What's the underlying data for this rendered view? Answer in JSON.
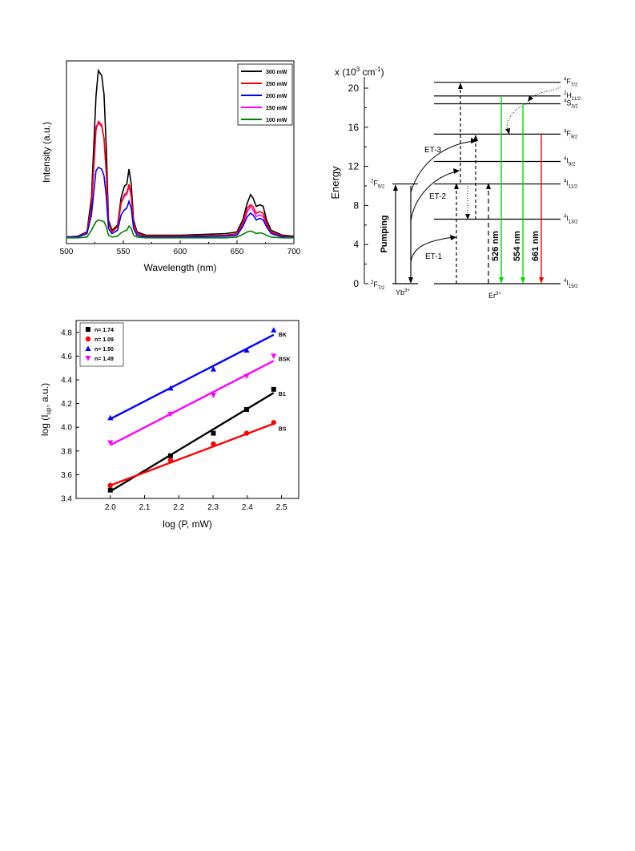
{
  "spectrum": {
    "chart_data": {
      "type": "line",
      "xlabel": "Wavelength (nm)",
      "ylabel": "Intensity (a.u.)",
      "xlim": [
        500,
        700
      ],
      "x_ticks": [
        "500",
        "550",
        "600",
        "650",
        "700"
      ],
      "legend_position": "top-right",
      "series": [
        {
          "name": "300 mW",
          "color": "#000000",
          "points": [
            [
              500,
              0.02
            ],
            [
              510,
              0.025
            ],
            [
              518,
              0.05
            ],
            [
              522,
              0.25
            ],
            [
              526,
              0.85
            ],
            [
              528,
              1.0
            ],
            [
              531,
              0.97
            ],
            [
              533,
              0.86
            ],
            [
              535,
              0.55
            ],
            [
              537,
              0.12
            ],
            [
              540,
              0.06
            ],
            [
              545,
              0.09
            ],
            [
              548,
              0.25
            ],
            [
              551,
              0.32
            ],
            [
              553,
              0.33
            ],
            [
              555,
              0.42
            ],
            [
              557,
              0.33
            ],
            [
              559,
              0.12
            ],
            [
              562,
              0.05
            ],
            [
              570,
              0.03
            ],
            [
              600,
              0.03
            ],
            [
              640,
              0.04
            ],
            [
              650,
              0.05
            ],
            [
              655,
              0.12
            ],
            [
              659,
              0.22
            ],
            [
              662,
              0.27
            ],
            [
              664,
              0.25
            ],
            [
              667,
              0.2
            ],
            [
              670,
              0.21
            ],
            [
              673,
              0.2
            ],
            [
              676,
              0.12
            ],
            [
              680,
              0.06
            ],
            [
              690,
              0.03
            ],
            [
              700,
              0.025
            ]
          ]
        },
        {
          "name": "250 mW",
          "color": "#ff0000",
          "points": [
            [
              500,
              0.02
            ],
            [
              510,
              0.022
            ],
            [
              518,
              0.045
            ],
            [
              522,
              0.2
            ],
            [
              526,
              0.65
            ],
            [
              528,
              0.7
            ],
            [
              531,
              0.68
            ],
            [
              533,
              0.6
            ],
            [
              535,
              0.4
            ],
            [
              537,
              0.1
            ],
            [
              540,
              0.05
            ],
            [
              545,
              0.08
            ],
            [
              548,
              0.22
            ],
            [
              551,
              0.27
            ],
            [
              553,
              0.28
            ],
            [
              555,
              0.33
            ],
            [
              557,
              0.27
            ],
            [
              559,
              0.1
            ],
            [
              562,
              0.04
            ],
            [
              570,
              0.025
            ],
            [
              600,
              0.025
            ],
            [
              640,
              0.03
            ],
            [
              650,
              0.04
            ],
            [
              655,
              0.1
            ],
            [
              659,
              0.19
            ],
            [
              662,
              0.21
            ],
            [
              664,
              0.2
            ],
            [
              667,
              0.16
            ],
            [
              670,
              0.17
            ],
            [
              673,
              0.16
            ],
            [
              676,
              0.1
            ],
            [
              680,
              0.05
            ],
            [
              690,
              0.025
            ],
            [
              700,
              0.022
            ]
          ]
        },
        {
          "name": "200 mW",
          "color": "#0000ff",
          "points": [
            [
              500,
              0.02
            ],
            [
              510,
              0.02
            ],
            [
              518,
              0.04
            ],
            [
              522,
              0.15
            ],
            [
              526,
              0.41
            ],
            [
              528,
              0.43
            ],
            [
              531,
              0.42
            ],
            [
              533,
              0.38
            ],
            [
              535,
              0.26
            ],
            [
              537,
              0.07
            ],
            [
              540,
              0.04
            ],
            [
              545,
              0.06
            ],
            [
              548,
              0.15
            ],
            [
              551,
              0.18
            ],
            [
              553,
              0.19
            ],
            [
              555,
              0.23
            ],
            [
              557,
              0.19
            ],
            [
              559,
              0.07
            ],
            [
              562,
              0.03
            ],
            [
              570,
              0.02
            ],
            [
              600,
              0.02
            ],
            [
              640,
              0.025
            ],
            [
              650,
              0.03
            ],
            [
              655,
              0.08
            ],
            [
              659,
              0.14
            ],
            [
              662,
              0.16
            ],
            [
              664,
              0.15
            ],
            [
              667,
              0.12
            ],
            [
              670,
              0.13
            ],
            [
              673,
              0.12
            ],
            [
              676,
              0.08
            ],
            [
              680,
              0.04
            ],
            [
              690,
              0.02
            ],
            [
              700,
              0.02
            ]
          ]
        },
        {
          "name": "150 mW",
          "color": "#ff00ff",
          "points": [
            [
              500,
              0.02
            ],
            [
              510,
              0.022
            ],
            [
              518,
              0.045
            ],
            [
              522,
              0.2
            ],
            [
              526,
              0.67
            ],
            [
              528,
              0.69
            ],
            [
              531,
              0.67
            ],
            [
              533,
              0.6
            ],
            [
              535,
              0.4
            ],
            [
              537,
              0.1
            ],
            [
              540,
              0.05
            ],
            [
              545,
              0.08
            ],
            [
              548,
              0.22
            ],
            [
              551,
              0.26
            ],
            [
              553,
              0.27
            ],
            [
              555,
              0.32
            ],
            [
              557,
              0.26
            ],
            [
              559,
              0.1
            ],
            [
              562,
              0.04
            ],
            [
              570,
              0.025
            ],
            [
              600,
              0.025
            ],
            [
              640,
              0.03
            ],
            [
              650,
              0.04
            ],
            [
              655,
              0.09
            ],
            [
              659,
              0.17
            ],
            [
              662,
              0.2
            ],
            [
              664,
              0.18
            ],
            [
              667,
              0.14
            ],
            [
              670,
              0.15
            ],
            [
              673,
              0.14
            ],
            [
              676,
              0.09
            ],
            [
              680,
              0.045
            ],
            [
              690,
              0.025
            ],
            [
              700,
              0.022
            ]
          ]
        },
        {
          "name": "100 mW",
          "color": "#008000",
          "points": [
            [
              500,
              0.015
            ],
            [
              510,
              0.015
            ],
            [
              518,
              0.02
            ],
            [
              522,
              0.06
            ],
            [
              526,
              0.11
            ],
            [
              528,
              0.12
            ],
            [
              531,
              0.115
            ],
            [
              533,
              0.11
            ],
            [
              535,
              0.08
            ],
            [
              537,
              0.03
            ],
            [
              540,
              0.02
            ],
            [
              545,
              0.025
            ],
            [
              548,
              0.045
            ],
            [
              551,
              0.055
            ],
            [
              553,
              0.06
            ],
            [
              555,
              0.085
            ],
            [
              557,
              0.07
            ],
            [
              559,
              0.03
            ],
            [
              562,
              0.02
            ],
            [
              570,
              0.015
            ],
            [
              600,
              0.015
            ],
            [
              640,
              0.015
            ],
            [
              650,
              0.02
            ],
            [
              655,
              0.035
            ],
            [
              659,
              0.05
            ],
            [
              662,
              0.055
            ],
            [
              664,
              0.05
            ],
            [
              667,
              0.04
            ],
            [
              670,
              0.045
            ],
            [
              673,
              0.04
            ],
            [
              676,
              0.03
            ],
            [
              680,
              0.02
            ],
            [
              690,
              0.015
            ],
            [
              700,
              0.015
            ]
          ]
        }
      ]
    }
  },
  "energy": {
    "ylabel": "Energy",
    "unit_label": {
      "a": "x (10",
      "b": "3",
      "c": " cm",
      "d": "-1",
      "e": ")"
    },
    "y_ticks": [
      "0",
      "4",
      "8",
      "12",
      "16",
      "20"
    ],
    "yb_levels": [
      {
        "energy": 0,
        "label": {
          "sup": "2",
          "main": "F",
          "sub": "7/2"
        }
      },
      {
        "energy": 10.2,
        "label": {
          "sup": "2",
          "main": "F",
          "sub": "5/2"
        }
      }
    ],
    "er_levels": [
      {
        "energy": 0,
        "label": {
          "sup": "4",
          "main": "I",
          "sub": "15/2"
        }
      },
      {
        "energy": 6.6,
        "label": {
          "sup": "4",
          "main": "I",
          "sub": "13/2"
        }
      },
      {
        "energy": 10.2,
        "label": {
          "sup": "4",
          "main": "I",
          "sub": "11/2"
        }
      },
      {
        "energy": 12.5,
        "label": {
          "sup": "4",
          "main": "I",
          "sub": "9/2"
        }
      },
      {
        "energy": 15.3,
        "label": {
          "sup": "4",
          "main": "F",
          "sub": "9/2"
        }
      },
      {
        "energy": 18.4,
        "label": {
          "sup": "4",
          "main": "S",
          "sub": "3/2"
        }
      },
      {
        "energy": 19.2,
        "label": {
          "sup": "2",
          "main": "H",
          "sub": "11/2"
        }
      },
      {
        "energy": 20.6,
        "label": {
          "sup": "4",
          "main": "F",
          "sub": "7/2"
        }
      }
    ],
    "ion_yb": {
      "main": "Yb",
      "sup": "3+"
    },
    "ion_er": {
      "main": "Er",
      "sup": "3+"
    },
    "pumping": "Pumping",
    "et_labels": [
      "ET-1",
      "ET-2",
      "ET-3"
    ],
    "emissions": [
      {
        "label": "526 nm",
        "from_energy": 19.2,
        "color": "#00dd00"
      },
      {
        "label": "554 nm",
        "from_energy": 18.4,
        "color": "#00dd00"
      },
      {
        "label": "661 nm",
        "from_energy": 15.3,
        "color": "#ff0000"
      }
    ]
  },
  "power": {
    "chart_data": {
      "type": "scatter",
      "xlabel": "log (P, mW)",
      "ylabel": {
        "a": "log (I",
        "sub": "up",
        "b": ", a.u.)"
      },
      "xlim": [
        1.9,
        2.55
      ],
      "ylim": [
        3.4,
        4.9
      ],
      "x_ticks": [
        "2.0",
        "2.1",
        "2.2",
        "2.3",
        "2.4",
        "2.5"
      ],
      "y_ticks": [
        "3.4",
        "3.6",
        "3.8",
        "4.0",
        "4.2",
        "4.4",
        "4.6",
        "4.8"
      ],
      "legend_position": "top-left",
      "series": [
        {
          "legend": "n= 1.74",
          "name": "B1",
          "color": "#000000",
          "marker": "square",
          "x": [
            2.0,
            2.176,
            2.301,
            2.398,
            2.477
          ],
          "y": [
            3.47,
            3.76,
            3.95,
            4.15,
            4.32
          ],
          "fit": [
            [
              2.0,
              3.46
            ],
            [
              2.477,
              4.29
            ]
          ]
        },
        {
          "legend": "n= 1.09",
          "name": "BS",
          "color": "#ff0000",
          "marker": "circle",
          "x": [
            2.0,
            2.176,
            2.301,
            2.398,
            2.477
          ],
          "y": [
            3.51,
            3.72,
            3.86,
            3.95,
            4.04
          ],
          "fit": [
            [
              2.0,
              3.51
            ],
            [
              2.477,
              4.03
            ]
          ]
        },
        {
          "legend": "n= 1.50",
          "name": "BK",
          "color": "#0000ff",
          "marker": "triangle-up",
          "x": [
            2.0,
            2.176,
            2.301,
            2.398,
            2.477
          ],
          "y": [
            4.08,
            4.33,
            4.49,
            4.65,
            4.82
          ],
          "fit": [
            [
              2.0,
              4.07
            ],
            [
              2.477,
              4.78
            ]
          ]
        },
        {
          "legend": "n= 1.49",
          "name": "BSK",
          "color": "#ff00ff",
          "marker": "triangle-down",
          "x": [
            2.0,
            2.176,
            2.301,
            2.398,
            2.477
          ],
          "y": [
            3.87,
            4.11,
            4.27,
            4.43,
            4.6
          ],
          "fit": [
            [
              2.0,
              3.85
            ],
            [
              2.477,
              4.56
            ]
          ]
        }
      ]
    }
  }
}
